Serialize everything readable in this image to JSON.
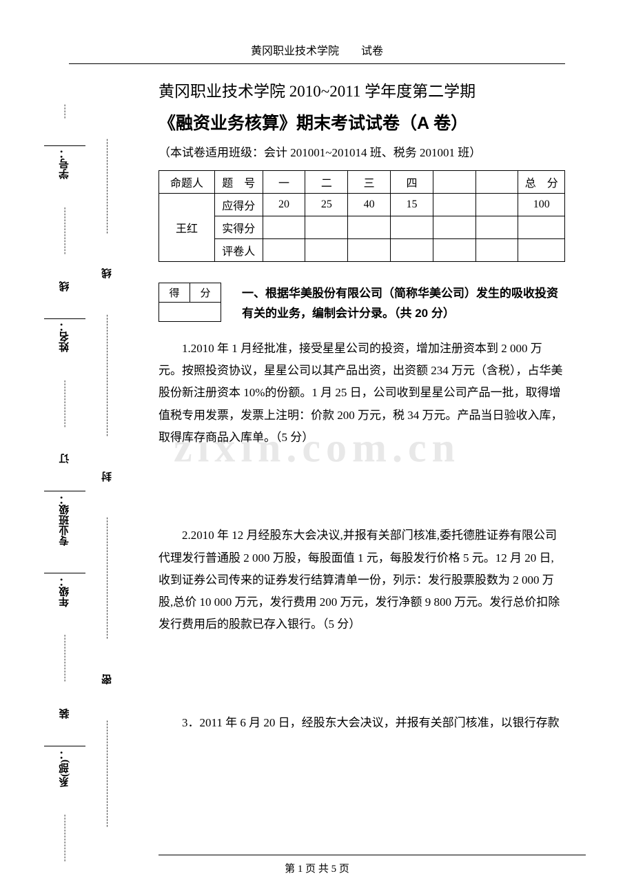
{
  "header": "黄冈职业技术学院　　试卷",
  "watermark": "zixin.com.cn",
  "sidebar": {
    "outer_labels": [
      "装",
      "订",
      "线"
    ],
    "inner_labels": [
      "密",
      "封",
      "线"
    ],
    "fields": [
      "系(部)：",
      "年级：",
      "专业班级：",
      "姓名：",
      "学号："
    ]
  },
  "title": {
    "line1": "黄冈职业技术学院 2010~2011 学年度第二学期",
    "line2": "《融资业务核算》期末考试试卷（A 卷）",
    "class_info": "（本试卷适用班级：会计 201001~201014 班、税务 201001 班）"
  },
  "score_table": {
    "setter_label": "命题人",
    "setter_name": "王红",
    "row1_label": "题　号",
    "row2_label": "应得分",
    "row3_label": "实得分",
    "row4_label": "评卷人",
    "cols": [
      "一",
      "二",
      "三",
      "四",
      "",
      "",
      "总　分"
    ],
    "points": [
      "20",
      "25",
      "40",
      "15",
      "",
      "",
      "100"
    ]
  },
  "small_table": {
    "cell1": "得",
    "cell2": "分"
  },
  "section1": {
    "title": "一、根据华美股份有限公司（简称华美公司）发生的吸收投资有关的业务，编制会计分录。（共 20 分）",
    "q1": "1.2010 年 1 月经批准，接受星星公司的投资，增加注册资本到 2 000 万元。按照投资协议，星星公司以其产品出资，出资额 234 万元（含税），占华美股份新注册资本 10%的份额。1 月 25 日，公司收到星星公司产品一批，取得增值税专用发票，发票上注明：价款 200 万元，税 34 万元。产品当日验收入库，取得库存商品入库单。（5 分）",
    "q2": "2.2010 年 12 月经股东大会决议,并报有关部门核准,委托德胜证券有限公司代理发行普通股 2 000 万股，每股面值 1 元，每股发行价格 5 元。12 月 20 日,收到证券公司传来的证券发行结算清单一份，列示：发行股票股数为 2 000 万股,总价 10 000 万元，发行费用 200 万元，发行净额 9 800 万元。发行总价扣除发行费用后的股款已存入银行。（5 分）",
    "q3": "3．2011 年 6 月 20 日，经股东大会决议，并报有关部门核准，以银行存款"
  },
  "footer": "第 1 页 共 5 页"
}
